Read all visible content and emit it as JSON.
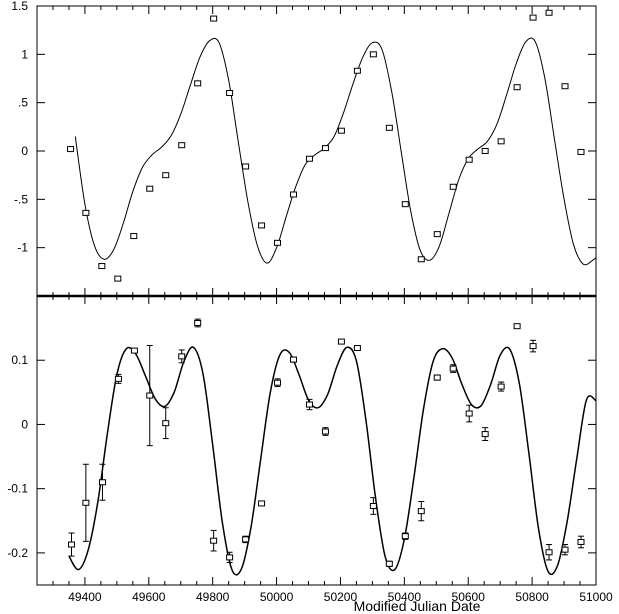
{
  "chart_data": [
    {
      "type": "scatter",
      "panel": "top",
      "title": "",
      "xlabel": "",
      "ylabel": "",
      "xlim": [
        49250,
        51000
      ],
      "ylim": [
        -1.5,
        1.5
      ],
      "yticks": [
        1.5,
        1,
        0.5,
        0,
        -0.5,
        -1
      ],
      "ytick_labels": [
        "1.5",
        "1",
        ".5",
        "0",
        "-.5",
        "-1"
      ],
      "grid": false,
      "series": [
        {
          "style": "open-square-markers",
          "points": [
            [
              49355,
              0.02
            ],
            [
              49403,
              -0.64
            ],
            [
              49453,
              -1.19
            ],
            [
              49503,
              -1.32
            ],
            [
              49553,
              -0.88
            ],
            [
              49603,
              -0.39
            ],
            [
              49653,
              -0.25
            ],
            [
              49703,
              0.06
            ],
            [
              49753,
              0.7
            ],
            [
              49803,
              1.37
            ],
            [
              49853,
              0.6
            ],
            [
              49903,
              -0.16
            ],
            [
              49953,
              -0.77
            ],
            [
              50003,
              -0.95
            ],
            [
              50053,
              -0.45
            ],
            [
              50103,
              -0.08
            ],
            [
              50153,
              0.03
            ],
            [
              50203,
              0.21
            ],
            [
              50253,
              0.83
            ],
            [
              50303,
              1.0
            ],
            [
              50353,
              0.24
            ],
            [
              50403,
              -0.55
            ],
            [
              50453,
              -1.12
            ],
            [
              50503,
              -0.86
            ],
            [
              50553,
              -0.37
            ],
            [
              50603,
              -0.09
            ],
            [
              50653,
              0.0
            ],
            [
              50703,
              0.1
            ],
            [
              50753,
              0.66
            ],
            [
              50803,
              1.38
            ],
            [
              50853,
              1.43
            ],
            [
              50903,
              0.67
            ],
            [
              50953,
              -0.01
            ]
          ]
        },
        {
          "style": "solid-line",
          "x": [
            49370,
            49400,
            49430,
            49460,
            49490,
            49520,
            49550,
            49580,
            49610,
            49640,
            49670,
            49700,
            49730,
            49760,
            49790,
            49820,
            49850,
            49880,
            49910,
            49940,
            49970,
            50000,
            50030,
            50060,
            50090,
            50120,
            50150,
            50180,
            50210,
            50240,
            50270,
            50300,
            50330,
            50360,
            50390,
            50420,
            50450,
            50480,
            50510,
            50540,
            50570,
            50600,
            50630,
            50660,
            50690,
            50720,
            50750,
            50780,
            50810,
            50840,
            50870,
            50900,
            50930,
            50960,
            50990,
            51000
          ],
          "y": [
            0.15,
            -0.55,
            -0.98,
            -1.12,
            -1.02,
            -0.75,
            -0.42,
            -0.17,
            -0.04,
            0.04,
            0.16,
            0.38,
            0.68,
            0.97,
            1.14,
            1.12,
            0.73,
            0.1,
            -0.52,
            -0.98,
            -1.16,
            -1.0,
            -0.68,
            -0.37,
            -0.14,
            -0.04,
            0.03,
            0.15,
            0.4,
            0.7,
            0.97,
            1.12,
            1.05,
            0.62,
            0.0,
            -0.62,
            -1.03,
            -1.13,
            -0.98,
            -0.64,
            -0.3,
            -0.08,
            0.02,
            0.1,
            0.28,
            0.58,
            0.9,
            1.13,
            1.13,
            0.75,
            0.12,
            -0.5,
            -0.97,
            -1.17,
            -1.13,
            -1.1
          ]
        }
      ]
    },
    {
      "type": "scatter",
      "panel": "bottom",
      "title": "",
      "xlabel": "Modified Julian Date",
      "ylabel": "",
      "xlim": [
        49250,
        51000
      ],
      "ylim": [
        -0.25,
        0.2
      ],
      "xticks": [
        49400,
        49600,
        49800,
        50000,
        50200,
        50400,
        50600,
        50800,
        51000
      ],
      "xtick_labels": [
        "49400",
        "49600",
        "49800",
        "50000",
        "50200",
        "50400",
        "50600",
        "50800",
        "51000"
      ],
      "yticks": [
        0.1,
        0,
        -0.1,
        -0.2
      ],
      "ytick_labels": [
        "0.1",
        "0",
        "-0.1",
        "-0.2"
      ],
      "grid": false,
      "series": [
        {
          "style": "open-square-markers-with-error-bars",
          "points": [
            [
              49358,
              -0.187,
              0.018
            ],
            [
              49403,
              -0.122,
              0.06
            ],
            [
              49455,
              -0.09,
              0.028
            ],
            [
              49505,
              0.071,
              0.007
            ],
            [
              49555,
              0.115,
              0.003
            ],
            [
              49603,
              0.045,
              0.078
            ],
            [
              49653,
              0.002,
              0.024
            ],
            [
              49703,
              0.106,
              0.01
            ],
            [
              49753,
              0.158,
              0.006
            ],
            [
              49803,
              -0.181,
              0.016
            ],
            [
              49853,
              -0.207,
              0.008
            ],
            [
              49903,
              -0.179,
              0.005
            ],
            [
              49953,
              -0.123,
              0.003
            ],
            [
              50003,
              0.065,
              0.006
            ],
            [
              50053,
              0.101,
              0.004
            ],
            [
              50103,
              0.031,
              0.008
            ],
            [
              50153,
              -0.011,
              0.006
            ],
            [
              50203,
              0.129,
              0.003
            ],
            [
              50253,
              0.119,
              0.003
            ],
            [
              50303,
              -0.127,
              0.013
            ],
            [
              50353,
              -0.217,
              0.004
            ],
            [
              50403,
              -0.174,
              0.005
            ],
            [
              50453,
              -0.135,
              0.015
            ],
            [
              50503,
              0.073,
              0.004
            ],
            [
              50553,
              0.087,
              0.006
            ],
            [
              50603,
              0.017,
              0.013
            ],
            [
              50653,
              -0.015,
              0.01
            ],
            [
              50703,
              0.059,
              0.007
            ],
            [
              50753,
              0.153,
              0.003
            ],
            [
              50803,
              0.122,
              0.009
            ],
            [
              50853,
              -0.199,
              0.012
            ],
            [
              50903,
              -0.195,
              0.008
            ],
            [
              50953,
              -0.183,
              0.009
            ]
          ]
        },
        {
          "style": "solid-line",
          "x": [
            49350,
            49380,
            49410,
            49440,
            49470,
            49500,
            49530,
            49560,
            49590,
            49620,
            49650,
            49680,
            49710,
            49740,
            49770,
            49800,
            49830,
            49860,
            49890,
            49920,
            49950,
            49980,
            50010,
            50040,
            50070,
            50100,
            50130,
            50160,
            50190,
            50220,
            50250,
            50280,
            50310,
            50340,
            50370,
            50400,
            50430,
            50460,
            50490,
            50520,
            50550,
            50580,
            50610,
            50640,
            50670,
            50700,
            50730,
            50760,
            50790,
            50820,
            50850,
            50880,
            50910,
            50940,
            50970,
            51000
          ],
          "y": [
            -0.205,
            -0.226,
            -0.196,
            -0.122,
            -0.015,
            0.078,
            0.118,
            0.109,
            0.075,
            0.04,
            0.028,
            0.051,
            0.098,
            0.12,
            0.078,
            -0.032,
            -0.152,
            -0.226,
            -0.225,
            -0.16,
            -0.055,
            0.049,
            0.108,
            0.112,
            0.078,
            0.038,
            0.026,
            0.047,
            0.092,
            0.12,
            0.099,
            0.006,
            -0.115,
            -0.206,
            -0.226,
            -0.179,
            -0.083,
            0.024,
            0.098,
            0.118,
            0.103,
            0.063,
            0.031,
            0.029,
            0.062,
            0.108,
            0.117,
            0.064,
            -0.045,
            -0.162,
            -0.229,
            -0.219,
            -0.15,
            -0.053,
            0.038,
            0.037
          ]
        }
      ]
    }
  ]
}
